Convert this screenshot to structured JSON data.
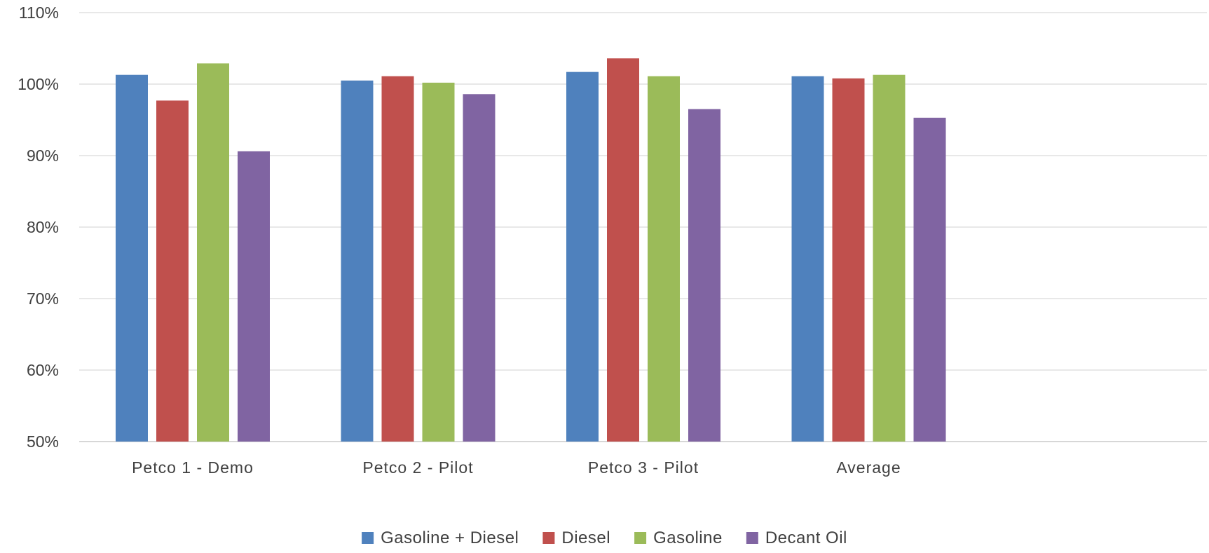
{
  "chart_data": {
    "type": "bar",
    "categories": [
      "Petco 1 - Demo",
      "Petco 2 - Pilot",
      "Petco 3 - Pilot",
      "Average"
    ],
    "series": [
      {
        "name": "Gasoline + Diesel",
        "color": "#4F81BD",
        "values": [
          101.3,
          100.5,
          101.7,
          101.1
        ]
      },
      {
        "name": "Diesel",
        "color": "#C0504D",
        "values": [
          97.7,
          101.1,
          103.6,
          100.8
        ]
      },
      {
        "name": "Gasoline",
        "color": "#9BBB59",
        "values": [
          102.9,
          100.2,
          101.1,
          101.3
        ]
      },
      {
        "name": "Decant Oil",
        "color": "#8064A2",
        "values": [
          90.6,
          98.6,
          96.5,
          95.3
        ]
      }
    ],
    "title": "",
    "xlabel": "",
    "ylabel": "",
    "ylim": [
      50,
      110
    ],
    "yticks": [
      "50%",
      "60%",
      "70%",
      "80%",
      "90%",
      "100%",
      "110%"
    ],
    "grid": true,
    "legend_position": "bottom"
  }
}
